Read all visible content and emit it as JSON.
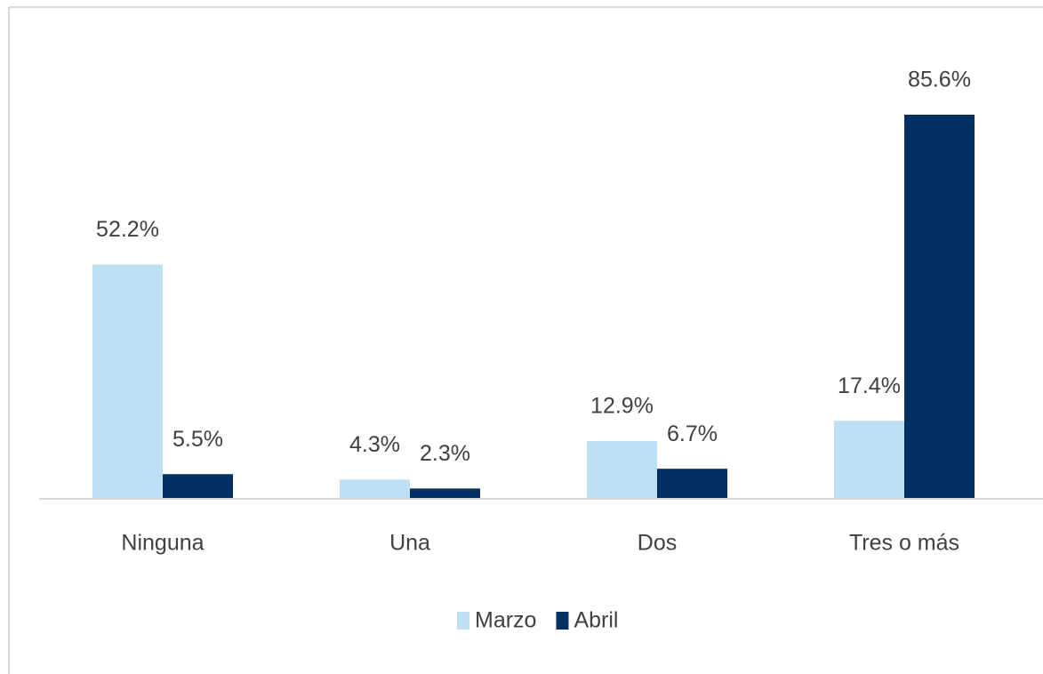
{
  "chart_data": {
    "type": "bar",
    "categories": [
      "Ninguna",
      "Una",
      "Dos",
      "Tres o más"
    ],
    "series": [
      {
        "name": "Marzo",
        "color": "#bde0f2",
        "values": [
          52.2,
          4.3,
          12.9,
          17.4
        ],
        "value_labels": [
          "52.2%",
          "4.3%",
          "12.9%",
          "17.4%"
        ]
      },
      {
        "name": "Abril",
        "color": "#003063",
        "values": [
          5.5,
          2.3,
          6.7,
          85.6
        ],
        "value_labels": [
          "5.5%",
          "2.3%",
          "6.7%",
          "85.6%"
        ]
      }
    ],
    "legend": "bottom"
  }
}
